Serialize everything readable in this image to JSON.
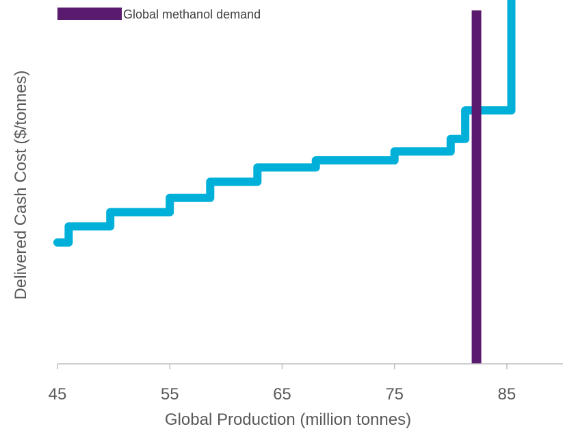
{
  "chart_data": {
    "type": "line",
    "title": "",
    "xlabel": "Global Production (million tonnes)",
    "ylabel": "Delivered Cash Cost ($/tonnes)",
    "xlim": [
      45,
      90
    ],
    "ylim": [
      0,
      100
    ],
    "x_ticks": [
      "45",
      "55",
      "65",
      "75",
      "85"
    ],
    "y_ticks_shown": false,
    "grid": false,
    "legend": {
      "position": "top-left",
      "entries": [
        "Global methanol demand"
      ]
    },
    "series": [
      {
        "type": "step",
        "color": "#00b0d8",
        "points": [
          [
            45,
            34
          ],
          [
            46,
            34
          ],
          [
            46,
            38.5
          ],
          [
            49.7,
            38.5
          ],
          [
            49.7,
            42.5
          ],
          [
            55,
            42.5
          ],
          [
            55,
            46.5
          ],
          [
            58.6,
            46.5
          ],
          [
            58.6,
            51
          ],
          [
            62.8,
            51
          ],
          [
            62.8,
            55
          ],
          [
            68,
            55
          ],
          [
            68,
            57
          ],
          [
            75,
            57
          ],
          [
            75,
            59.5
          ],
          [
            80,
            59.5
          ],
          [
            80,
            63
          ],
          [
            81.3,
            63
          ],
          [
            81.3,
            71
          ],
          [
            85.4,
            71
          ],
          [
            85.4,
            103
          ]
        ]
      },
      {
        "name": "Global methanol demand",
        "type": "vertical-line",
        "color": "#5a1a6e",
        "x": 82.3,
        "y_from": 0,
        "y_to": 99
      }
    ]
  }
}
